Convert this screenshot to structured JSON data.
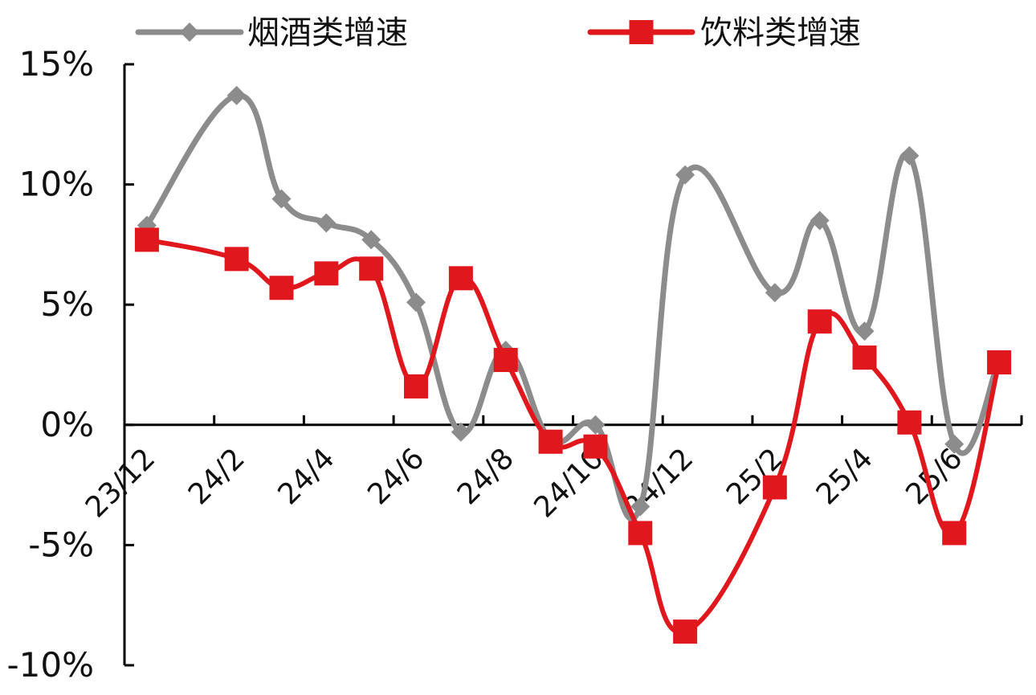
{
  "chart_data": {
    "type": "line",
    "title": "",
    "xlabel": "",
    "ylabel": "",
    "ylim": [
      -10,
      15
    ],
    "yticks": [
      -10,
      -5,
      0,
      5,
      10,
      15
    ],
    "ytick_labels": [
      "-10%",
      "-5%",
      "0%",
      "5%",
      "10%",
      "15%"
    ],
    "x": [
      "23/12",
      "24/1",
      "24/2",
      "24/3",
      "24/4",
      "24/5",
      "24/6",
      "24/7",
      "24/8",
      "24/9",
      "24/10",
      "24/11",
      "24/12",
      "25/1",
      "25/2",
      "25/3",
      "25/4",
      "25/5",
      "25/6",
      "25/7"
    ],
    "xtick_labels": [
      "23/12",
      "24/2",
      "24/4",
      "24/6",
      "24/8",
      "24/10",
      "24/12",
      "25/2",
      "25/4",
      "25/6"
    ],
    "legend_position": "top",
    "grid": false,
    "series": [
      {
        "name": "烟酒类增速",
        "color": "#8c8c8c",
        "marker": "diamond",
        "values": [
          8.3,
          null,
          13.7,
          9.4,
          8.4,
          7.7,
          5.1,
          -0.3,
          3.1,
          -0.6,
          0.0,
          -3.4,
          10.4,
          null,
          5.5,
          8.5,
          3.9,
          11.2,
          -0.8,
          2.7
        ]
      },
      {
        "name": "饮料类增速",
        "color": "#e1171e",
        "marker": "square",
        "values": [
          7.7,
          null,
          6.9,
          5.7,
          6.3,
          6.5,
          1.6,
          6.1,
          2.7,
          -0.7,
          -0.9,
          -4.5,
          -8.6,
          null,
          -2.6,
          4.3,
          2.8,
          0.1,
          -4.5,
          2.6
        ]
      }
    ]
  }
}
